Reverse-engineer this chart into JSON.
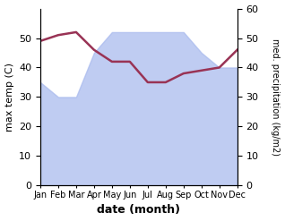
{
  "months": [
    "Jan",
    "Feb",
    "Mar",
    "Apr",
    "May",
    "Jun",
    "Jul",
    "Aug",
    "Sep",
    "Oct",
    "Nov",
    "Dec"
  ],
  "max_temp": [
    49,
    51,
    52,
    46,
    42,
    42,
    35,
    35,
    38,
    39,
    40,
    46
  ],
  "precipitation": [
    35,
    30,
    30,
    45,
    52,
    52,
    52,
    52,
    52,
    45,
    40,
    40
  ],
  "temp_ylim": [
    0,
    60
  ],
  "precip_ylim": [
    0,
    60
  ],
  "temp_yticks": [
    0,
    10,
    20,
    30,
    40,
    50
  ],
  "precip_yticks": [
    0,
    10,
    20,
    30,
    40,
    50,
    60
  ],
  "temp_color": "#993355",
  "fill_color": "#aabbee",
  "fill_alpha": 0.75,
  "ylabel_left": "max temp (C)",
  "ylabel_right": "med. precipitation (kg/m2)",
  "xlabel": "date (month)",
  "bg_color": "#ffffff"
}
